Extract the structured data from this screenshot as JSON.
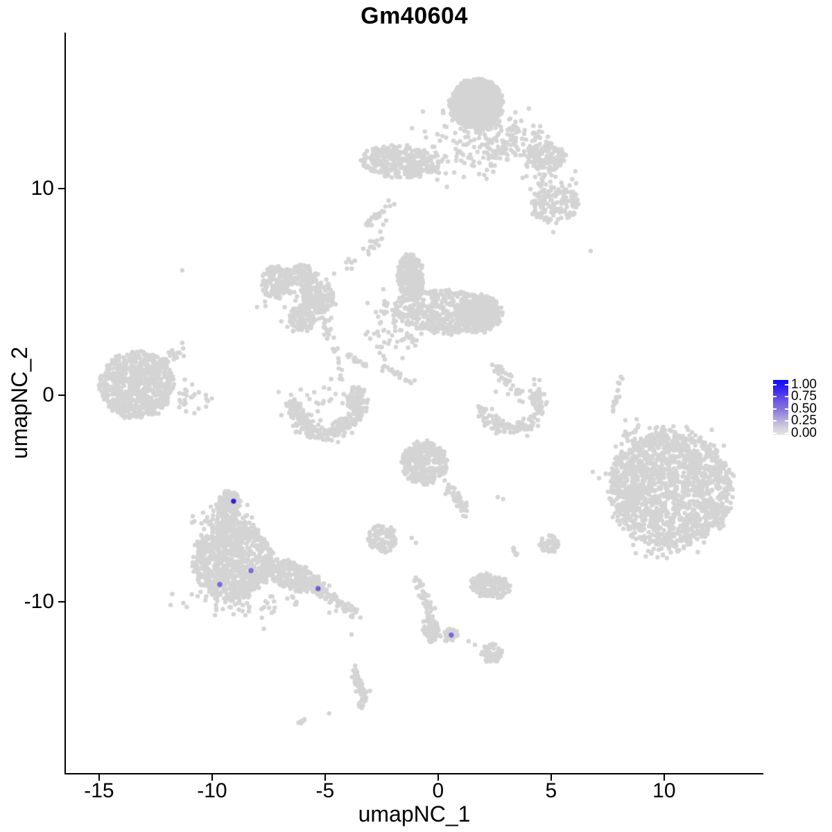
{
  "title": "Gm40604",
  "axes": {
    "x": {
      "label": "umapNC_1",
      "ticks": [
        -15,
        -10,
        -5,
        0,
        5,
        10
      ]
    },
    "y": {
      "label": "umapNC_2",
      "ticks": [
        10,
        0,
        -10
      ]
    }
  },
  "legend": {
    "tick_labels": [
      {
        "label": "1.00",
        "f": 0.09
      },
      {
        "label": "0.75",
        "f": 0.31
      },
      {
        "label": "0.50",
        "f": 0.53
      },
      {
        "label": "0.25",
        "f": 0.75
      },
      {
        "label": "0.00",
        "f": 0.97
      }
    ],
    "gradient": [
      [
        0.0,
        "#0b0bf8"
      ],
      [
        0.2,
        "#3e2cee"
      ],
      [
        0.4,
        "#6f5be2"
      ],
      [
        0.55,
        "#8c78dc"
      ],
      [
        0.72,
        "#b3aadc"
      ],
      [
        0.87,
        "#d2cedf"
      ],
      [
        1.0,
        "#e3e2e4"
      ]
    ],
    "low_color": "#e3e2e4",
    "high_color": "#0b0bf8"
  },
  "chart_data": {
    "type": "scatter",
    "subtype": "umap-feature-plot",
    "title": "Gm40604",
    "xlabel": "umapNC_1",
    "ylabel": "umapNC_2",
    "xlim": [
      -16.47,
      14.36
    ],
    "ylim": [
      -18.29,
      17.55
    ],
    "grid": false,
    "legend_position": "right",
    "expression_range": [
      0.0,
      1.0
    ],
    "point_color": "#d4d4d4",
    "point_radius_px": 3.2,
    "highlight_radius_px": 3.7,
    "highlighted_cells": [
      {
        "x": -9.05,
        "y": -5.13,
        "value": 0.95,
        "color": "#2e22ce"
      },
      {
        "x": -8.28,
        "y": -8.49,
        "value": 0.55,
        "color": "#7d69dc"
      },
      {
        "x": -9.66,
        "y": -9.16,
        "value": 0.55,
        "color": "#7d69dc"
      },
      {
        "x": -5.31,
        "y": -9.36,
        "value": 0.55,
        "color": "#715dd6"
      },
      {
        "x": 0.58,
        "y": -11.61,
        "value": 0.55,
        "color": "#7a66db"
      }
    ],
    "clusters": [
      {
        "t": "u",
        "cx": 1.69,
        "cy": 14.09,
        "rx": 1.17,
        "ry": 1.21,
        "rot": -10,
        "n": 950
      },
      {
        "t": "g",
        "cx": 1.99,
        "cy": 12.42,
        "sx": 1.23,
        "sy": 0.84,
        "n": 170
      },
      {
        "t": "g",
        "cx": 0.49,
        "cy": 11.07,
        "sx": 0.4,
        "sy": 0.45,
        "n": 15
      },
      {
        "t": "u",
        "cx": 4.79,
        "cy": 11.58,
        "rx": 0.86,
        "ry": 0.67,
        "n": 130
      },
      {
        "t": "g",
        "cx": 3.68,
        "cy": 12.18,
        "sx": 0.55,
        "sy": 0.55,
        "n": 50
      },
      {
        "t": "u",
        "cx": 5.15,
        "cy": 9.19,
        "rx": 1.1,
        "ry": 0.87,
        "rot": 15,
        "n": 150
      },
      {
        "t": "g",
        "cx": 4.88,
        "cy": 10.34,
        "sx": 0.6,
        "sy": 0.5,
        "n": 35
      },
      {
        "t": "d",
        "pts": [
          [
            5.09,
            7.89
          ],
          [
            6.75,
            6.98
          ],
          [
            -11.32,
            6.04
          ]
        ]
      },
      {
        "t": "u",
        "cx": -1.69,
        "cy": 11.31,
        "rx": 1.72,
        "ry": 0.77,
        "rot": -4,
        "n": 300
      },
      {
        "t": "c",
        "pts": [
          [
            -3.13,
            8.22
          ],
          [
            -2.52,
            8.86
          ]
        ],
        "n": 26,
        "j": 0.07
      },
      {
        "t": "c",
        "pts": [
          [
            -2.15,
            9.4
          ],
          [
            -2.5,
            8.3
          ],
          [
            -2.7,
            7.38
          ],
          [
            -4.6,
            5.8
          ]
        ],
        "n": 30,
        "j": 0.12
      },
      {
        "t": "u",
        "cx": -7.21,
        "cy": 5.47,
        "rx": 0.61,
        "ry": 0.81,
        "n": 140
      },
      {
        "t": "u",
        "cx": -6.13,
        "cy": 5.81,
        "rx": 0.8,
        "ry": 0.5,
        "n": 100
      },
      {
        "t": "u",
        "cx": -5.34,
        "cy": 4.8,
        "rx": 0.74,
        "ry": 0.81,
        "n": 150
      },
      {
        "t": "u",
        "cx": -5.98,
        "cy": 3.76,
        "rx": 0.58,
        "ry": 0.64,
        "n": 120
      },
      {
        "t": "c",
        "pts": [
          [
            -5.15,
            4.03
          ],
          [
            -4.72,
            2.68
          ]
        ],
        "n": 20,
        "j": 0.1
      },
      {
        "t": "g",
        "cx": -6.2,
        "cy": 4.63,
        "sx": 0.9,
        "sy": 0.8,
        "n": 45
      },
      {
        "t": "c",
        "pts": [
          [
            -4.54,
            2.35
          ],
          [
            -4.29,
            0.6
          ]
        ],
        "n": 14,
        "j": 0.08
      },
      {
        "t": "u",
        "cx": -13.34,
        "cy": 0.5,
        "rx": 1.6,
        "ry": 1.62,
        "n": 720
      },
      {
        "t": "c",
        "pts": [
          [
            -12.3,
            1.6
          ],
          [
            -11.3,
            2.3
          ]
        ],
        "n": 26,
        "j": 0.15
      },
      {
        "t": "g",
        "cx": -10.9,
        "cy": -0.1,
        "sx": 0.55,
        "sy": 0.4,
        "n": 28
      },
      {
        "t": "a",
        "cx": -4.97,
        "cy": -0.44,
        "rx": 1.41,
        "ry": 1.41,
        "a0": 2.95,
        "a1": 6.6,
        "w": 0.22,
        "n": 270
      },
      {
        "t": "u",
        "cx": -3.56,
        "cy": 0.03,
        "rx": 0.34,
        "ry": 0.5,
        "n": 45
      },
      {
        "t": "g",
        "cx": -4.97,
        "cy": 0.0,
        "sx": 0.8,
        "sy": 0.45,
        "n": 22
      },
      {
        "t": "u",
        "cx": -1.2,
        "cy": 5.7,
        "rx": 0.58,
        "ry": 1.11,
        "rot": 5,
        "n": 270
      },
      {
        "t": "u",
        "cx": 0.4,
        "cy": 4.03,
        "rx": 2.39,
        "ry": 1.04,
        "rot": -3,
        "n": 520
      },
      {
        "t": "u",
        "cx": 1.84,
        "cy": 3.96,
        "rx": 0.98,
        "ry": 0.91,
        "n": 260
      },
      {
        "t": "g",
        "cx": -2.3,
        "cy": 3.62,
        "sx": 0.45,
        "sy": 0.9,
        "n": 55
      },
      {
        "t": "g",
        "cx": -0.98,
        "cy": 2.68,
        "sx": 0.5,
        "sy": 0.3,
        "n": 12
      },
      {
        "t": "c",
        "pts": [
          [
            -4.05,
            2.01
          ],
          [
            -3.19,
            1.44
          ]
        ],
        "n": 16,
        "j": 0.06
      },
      {
        "t": "c",
        "pts": [
          [
            -2.45,
            1.41
          ],
          [
            -1.2,
            0.57
          ]
        ],
        "n": 20,
        "j": 0.06
      },
      {
        "t": "c",
        "pts": [
          [
            2.55,
            1.44
          ],
          [
            3.56,
            0.07
          ]
        ],
        "n": 40,
        "j": 0.12
      },
      {
        "t": "a",
        "cx": 3.22,
        "cy": -0.34,
        "rx": 1.29,
        "ry": 1.28,
        "a0": 3.25,
        "a1": 6.7,
        "w": 0.18,
        "n": 150
      },
      {
        "t": "c",
        "pts": [
          [
            4.23,
            -0.3
          ],
          [
            4.51,
            0.23
          ]
        ],
        "n": 12,
        "j": 0.08
      },
      {
        "t": "g",
        "cx": 3.53,
        "cy": 0.34,
        "sx": 0.6,
        "sy": 0.4,
        "n": 12
      },
      {
        "t": "c",
        "pts": [
          [
            8.13,
            1.01
          ],
          [
            7.76,
            -0.74
          ]
        ],
        "n": 18,
        "j": 0.05
      },
      {
        "t": "u",
        "cx": 10.31,
        "cy": -4.56,
        "rx": 2.7,
        "ry": 2.82,
        "rot": 15,
        "n": 1550
      },
      {
        "t": "g",
        "cx": 8.31,
        "cy": -4.43,
        "sx": 0.5,
        "sy": 1.3,
        "n": 70
      },
      {
        "t": "g",
        "cx": 10.06,
        "cy": -7.55,
        "sx": 0.8,
        "sy": 0.25,
        "n": 18
      },
      {
        "t": "g",
        "cx": 9.75,
        "cy": -2.01,
        "sx": 1.2,
        "sy": 0.35,
        "n": 40
      },
      {
        "t": "u",
        "cx": -0.61,
        "cy": -3.29,
        "rx": 1.01,
        "ry": 1.04,
        "n": 310
      },
      {
        "t": "c",
        "pts": [
          [
            0.25,
            -4.23
          ],
          [
            1.26,
            -5.7
          ]
        ],
        "n": 42,
        "j": 0.12
      },
      {
        "t": "d",
        "pts": [
          [
            2.64,
            -4.93
          ],
          [
            2.88,
            -5.03
          ]
        ]
      },
      {
        "t": "u",
        "cx": -2.45,
        "cy": -6.95,
        "rx": 0.64,
        "ry": 0.7,
        "n": 95
      },
      {
        "t": "d",
        "pts": [
          [
            -1.17,
            -6.91
          ],
          [
            -0.98,
            -7.15
          ]
        ]
      },
      {
        "t": "u",
        "cx": 4.91,
        "cy": -7.21,
        "rx": 0.43,
        "ry": 0.44,
        "n": 50
      },
      {
        "t": "c",
        "pts": [
          [
            3.19,
            -7.28
          ],
          [
            3.53,
            -7.72
          ]
        ],
        "n": 7,
        "j": 0.06
      },
      {
        "t": "u",
        "cx": -9.26,
        "cy": -5.34,
        "rx": 0.55,
        "ry": 0.7,
        "n": 150
      },
      {
        "t": "g",
        "cx": -9.23,
        "cy": -6.31,
        "sx": 0.75,
        "sy": 0.5,
        "n": 90
      },
      {
        "t": "u",
        "cx": -9.08,
        "cy": -7.99,
        "rx": 1.75,
        "ry": 1.91,
        "n": 870
      },
      {
        "t": "u",
        "cx": -6.38,
        "cy": -8.76,
        "rx": 1.41,
        "ry": 0.64,
        "rot": -25,
        "n": 270
      },
      {
        "t": "c",
        "pts": [
          [
            -5.12,
            -9.5
          ],
          [
            -3.62,
            -10.6
          ]
        ],
        "n": 55,
        "j": 0.15
      },
      {
        "t": "g",
        "cx": -8.59,
        "cy": -9.93,
        "sx": 1.3,
        "sy": 0.45,
        "n": 70
      },
      {
        "t": "d",
        "pts": [
          [
            -3.83,
            -11.58
          ]
        ]
      },
      {
        "t": "u",
        "cx": 2.3,
        "cy": -9.23,
        "rx": 0.89,
        "ry": 0.6,
        "rot": -8,
        "n": 170
      },
      {
        "t": "c",
        "pts": [
          [
            -0.95,
            -8.86
          ],
          [
            -0.52,
            -9.9
          ],
          [
            -0.31,
            -10.64
          ]
        ],
        "n": 40,
        "j": 0.12
      },
      {
        "t": "u",
        "cx": -0.34,
        "cy": -11.28,
        "rx": 0.34,
        "ry": 0.7,
        "rot": 10,
        "n": 75
      },
      {
        "t": "d",
        "pts": [
          [
            -0.98,
            -8.83
          ]
        ]
      },
      {
        "t": "u",
        "cx": 0.49,
        "cy": -11.61,
        "rx": 0.4,
        "ry": 0.3,
        "n": 32
      },
      {
        "t": "d",
        "pts": [
          [
            1.35,
            -11.91
          ],
          [
            1.63,
            -12.08
          ]
        ]
      },
      {
        "t": "u",
        "cx": 2.36,
        "cy": -12.48,
        "rx": 0.49,
        "ry": 0.47,
        "n": 60
      },
      {
        "t": "c",
        "pts": [
          [
            -3.68,
            -13.26
          ],
          [
            -3.56,
            -14.09
          ],
          [
            -3.25,
            -14.46
          ],
          [
            -3.44,
            -15.07
          ]
        ],
        "n": 80,
        "j": 0.08
      },
      {
        "t": "d",
        "pts": [
          [
            -4.82,
            -15.4
          ]
        ]
      },
      {
        "t": "c",
        "pts": [
          [
            -6.2,
            -15.97
          ],
          [
            -5.86,
            -15.67
          ]
        ],
        "n": 9,
        "j": 0.04
      }
    ]
  }
}
